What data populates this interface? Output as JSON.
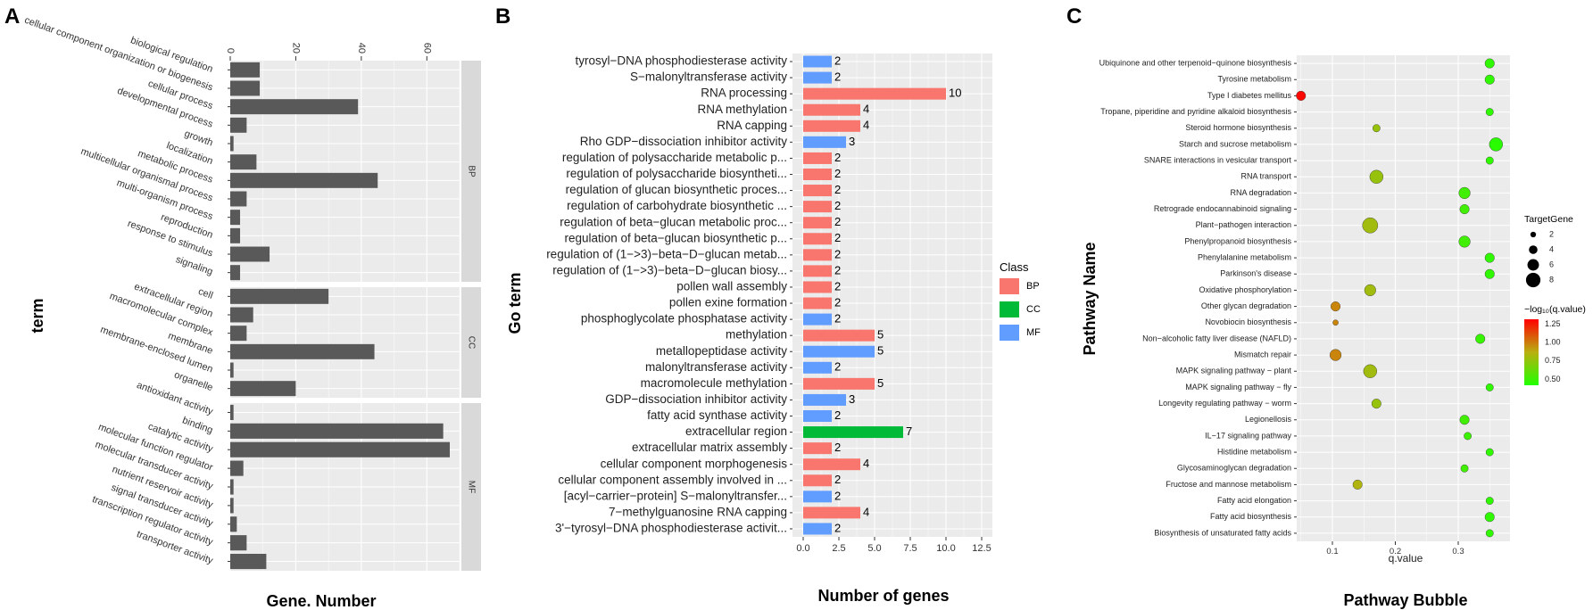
{
  "panel_labels": [
    "A",
    "B",
    "C"
  ],
  "colors": {
    "panel_bg": "#ebebeb",
    "grid": "#ffffff",
    "bar_dark": "#595959",
    "strip_bg": "#d9d9d9",
    "BP": "#f8766d",
    "CC": "#00ba38",
    "MF": "#619cff",
    "grad_high": "#ff0000",
    "grad_low": "#22ff00"
  },
  "chart_data": [
    {
      "type": "bar",
      "panel": "A",
      "orientation": "horizontal",
      "xlabel": "Gene. Number",
      "ylabel": "term",
      "x_ticks": [
        0,
        20,
        40,
        60
      ],
      "xlim": [
        0,
        70
      ],
      "facets": [
        {
          "name": "BP",
          "categories": [
            "biological regulation",
            "cellular component organization or biogenesis",
            "cellular process",
            "developmental process",
            "growth",
            "localization",
            "metabolic process",
            "multicellular organismal process",
            "multi-organism process",
            "reproduction",
            "response to stimulus",
            "signaling"
          ],
          "values": [
            9,
            9,
            39,
            5,
            1,
            8,
            45,
            5,
            3,
            3,
            12,
            3
          ]
        },
        {
          "name": "CC",
          "categories": [
            "cell",
            "extracellular region",
            "macromolecular complex",
            "membrane",
            "membrane-enclosed lumen",
            "organelle"
          ],
          "values": [
            30,
            7,
            5,
            44,
            1,
            20
          ]
        },
        {
          "name": "MF",
          "categories": [
            "antioxidant activity",
            "binding",
            "catalytic activity",
            "molecular function regulator",
            "molecular transducer activity",
            "nutrient reservoir activity",
            "signal transducer activity",
            "transcription regulator activity",
            "transporter activity"
          ],
          "values": [
            1,
            65,
            67,
            4,
            1,
            1,
            2,
            5,
            11
          ]
        }
      ]
    },
    {
      "type": "bar",
      "panel": "B",
      "orientation": "horizontal",
      "xlabel": "Number of genes",
      "ylabel": "Go term",
      "x_ticks": [
        "0.0",
        "2.5",
        "5.0",
        "7.5",
        "10.0",
        "12.5"
      ],
      "xlim": [
        0,
        12.5
      ],
      "legend_title": "Class",
      "legend": [
        "BP",
        "CC",
        "MF"
      ],
      "categories": [
        "tyrosyl−DNA phosphodiesterase activity",
        "S−malonyltransferase activity",
        "RNA processing",
        "RNA methylation",
        "RNA capping",
        "Rho GDP−dissociation inhibitor activity",
        "regulation of polysaccharide metabolic p...",
        "regulation of polysaccharide biosyntheti...",
        "regulation of glucan biosynthetic proces...",
        "regulation of carbohydrate biosynthetic ...",
        "regulation of beta−glucan metabolic proc...",
        "regulation of beta−glucan biosynthetic p...",
        "regulation of (1−>3)−beta−D−glucan metab...",
        "regulation of (1−>3)−beta−D−glucan biosy...",
        "pollen wall assembly",
        "pollen exine formation",
        "phosphoglycolate phosphatase activity",
        "methylation",
        "metallopeptidase activity",
        "malonyltransferase activity",
        "macromolecule methylation",
        "GDP−dissociation inhibitor activity",
        "fatty acid synthase activity",
        "extracellular region",
        "extracellular matrix assembly",
        "cellular component morphogenesis",
        "cellular component assembly involved in ...",
        "[acyl−carrier−protein] S−malonyltransfer...",
        "7−methylguanosine RNA capping",
        "3'−tyrosyl−DNA phosphodiesterase activit..."
      ],
      "values": [
        2,
        2,
        10,
        4,
        4,
        3,
        2,
        2,
        2,
        2,
        2,
        2,
        2,
        2,
        2,
        2,
        2,
        5,
        5,
        2,
        5,
        3,
        2,
        7,
        2,
        4,
        2,
        2,
        4,
        2
      ],
      "value_labels": [
        "2",
        "2",
        "10",
        "4",
        "4",
        "3",
        "2",
        "2",
        "2",
        "2",
        "2",
        "2",
        "2",
        "2",
        "2",
        "2",
        "2",
        "5",
        "5",
        "2",
        "5",
        "3",
        "2",
        "7",
        "2",
        "4",
        "2",
        "2",
        "4",
        "2"
      ],
      "classes": [
        "MF",
        "MF",
        "BP",
        "BP",
        "BP",
        "MF",
        "BP",
        "BP",
        "BP",
        "BP",
        "BP",
        "BP",
        "BP",
        "BP",
        "BP",
        "BP",
        "MF",
        "BP",
        "MF",
        "MF",
        "BP",
        "MF",
        "MF",
        "CC",
        "BP",
        "BP",
        "BP",
        "MF",
        "BP",
        "MF"
      ]
    },
    {
      "type": "scatter",
      "panel": "C",
      "title": "Pathway Bubble",
      "xlabel": "q.value",
      "ylabel": "Pathway Name",
      "x_ticks": [
        "0.1",
        "0.2",
        "0.3"
      ],
      "xlim": [
        0.04,
        0.37
      ],
      "size_legend_title": "TargetGene",
      "size_legend": [
        "2",
        "4",
        "6",
        "8"
      ],
      "color_legend_title": "−log₁₀(q.value)",
      "color_legend_ticks": [
        "1.25",
        "1.00",
        "0.75",
        "0.50"
      ],
      "color_range": [
        0.42,
        1.32
      ],
      "pathways": [
        "Ubiquinone and other terpenoid−quinone biosynthesis",
        "Tyrosine metabolism",
        "Type I diabetes mellitus",
        "Tropane, piperidine and pyridine alkaloid biosynthesis",
        "Steroid hormone biosynthesis",
        "Starch and sucrose metabolism",
        "SNARE interactions in vesicular transport",
        "RNA transport",
        "RNA degradation",
        "Retrograde endocannabinoid signaling",
        "Plant−pathogen interaction",
        "Phenylpropanoid biosynthesis",
        "Phenylalanine metabolism",
        "Parkinson's disease",
        "Oxidative phosphorylation",
        "Other glycan degradation",
        "Novobiocin biosynthesis",
        "Non−alcoholic fatty liver disease (NAFLD)",
        "Mismatch repair",
        "MAPK signaling pathway − plant",
        "MAPK signaling pathway − fly",
        "Longevity regulating pathway − worm",
        "Legionellosis",
        "IL−17 signaling pathway",
        "Histidine metabolism",
        "Glycosaminoglycan degradation",
        "Fructose and mannose metabolism",
        "Fatty acid elongation",
        "Fatty acid biosynthesis",
        "Biosynthesis of unsaturated fatty acids"
      ],
      "q_values": [
        0.35,
        0.35,
        0.05,
        0.35,
        0.17,
        0.36,
        0.35,
        0.17,
        0.31,
        0.31,
        0.16,
        0.31,
        0.35,
        0.35,
        0.16,
        0.105,
        0.105,
        0.335,
        0.105,
        0.16,
        0.35,
        0.17,
        0.31,
        0.315,
        0.35,
        0.31,
        0.14,
        0.35,
        0.35,
        0.35
      ],
      "target_genes": [
        3,
        3,
        3,
        2,
        2,
        5,
        2,
        5,
        4,
        3,
        6,
        4,
        3,
        3,
        4,
        3,
        1,
        3,
        4,
        5,
        2,
        3,
        3,
        2,
        2,
        2,
        3,
        2,
        3,
        2
      ],
      "neg_log10_q": [
        0.46,
        0.46,
        1.3,
        0.46,
        0.77,
        0.44,
        0.46,
        0.77,
        0.51,
        0.51,
        0.8,
        0.51,
        0.46,
        0.46,
        0.8,
        0.98,
        0.98,
        0.48,
        0.98,
        0.8,
        0.46,
        0.77,
        0.51,
        0.5,
        0.46,
        0.51,
        0.85,
        0.46,
        0.46,
        0.46
      ]
    }
  ]
}
